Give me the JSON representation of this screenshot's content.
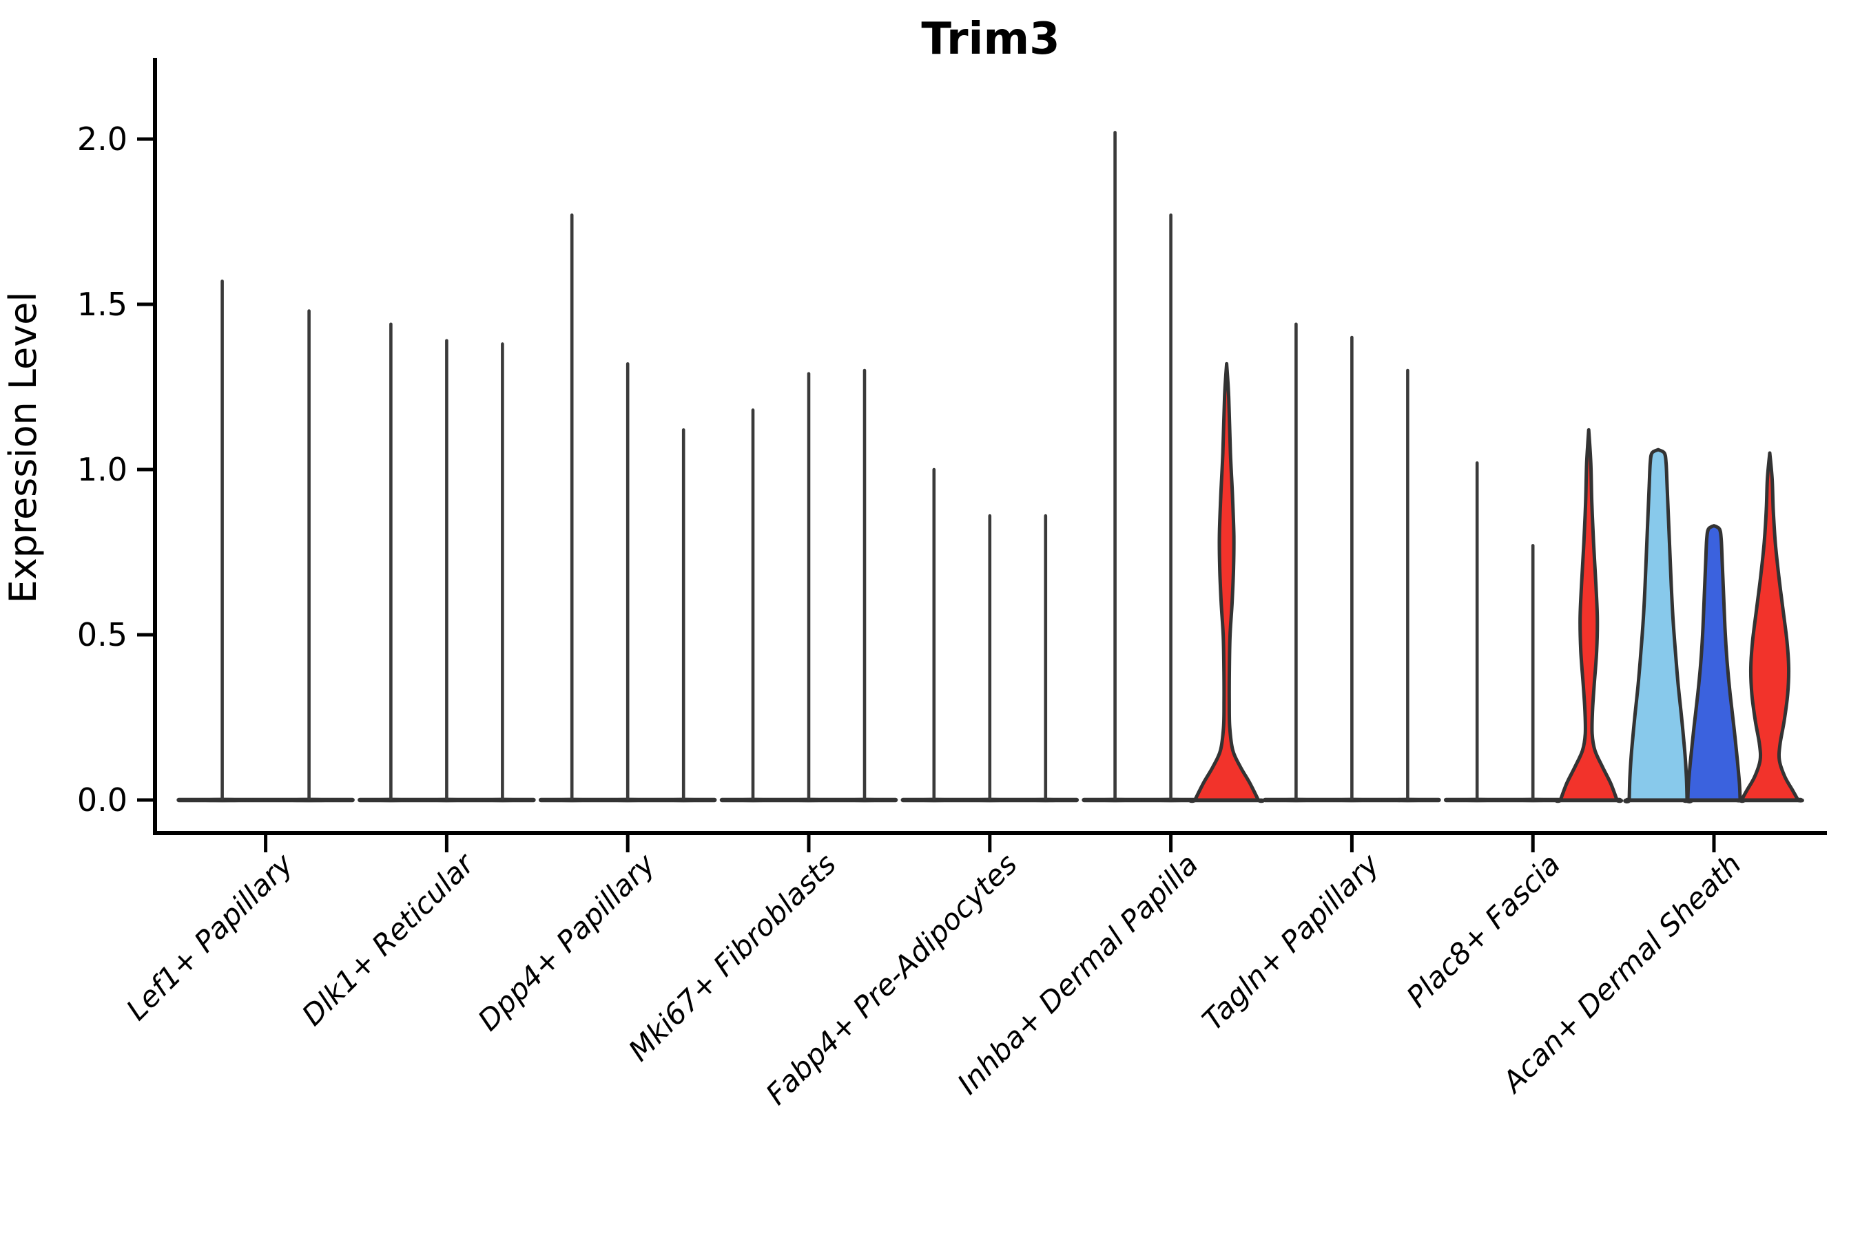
{
  "chart_data": {
    "type": "violin",
    "title": "Trim3",
    "xlabel": "",
    "ylabel": "Expression Level",
    "ytick_labels": [
      "0.0",
      "0.5",
      "1.0",
      "1.5",
      "2.0"
    ],
    "yticks": [
      0.0,
      0.5,
      1.0,
      1.5,
      2.0
    ],
    "ylim": [
      -0.1,
      2.25
    ],
    "grid": false,
    "legend": "none",
    "categories": [
      "Lef1+ Papillary",
      "Dlk1+ Reticular",
      "Dpp4+ Papillary",
      "Mki67+ Fibroblasts",
      "Fabp4+ Pre-Adipocytes",
      "Inhba+ Dermal Papilla",
      "Tagln+ Papillary",
      "Plac8+ Fascia",
      "Acan+ Dermal Sheath"
    ],
    "groups": [
      {
        "category": "Lef1+ Papillary",
        "violins": [
          {
            "style": "spike",
            "max": 1.57
          },
          {
            "style": "spike",
            "max": 1.48
          }
        ]
      },
      {
        "category": "Dlk1+ Reticular",
        "violins": [
          {
            "style": "spike",
            "max": 1.44
          },
          {
            "style": "spike",
            "max": 1.39
          },
          {
            "style": "spike",
            "max": 1.38
          }
        ]
      },
      {
        "category": "Dpp4+ Papillary",
        "violins": [
          {
            "style": "spike",
            "max": 1.77
          },
          {
            "style": "spike",
            "max": 1.32
          },
          {
            "style": "spike",
            "max": 1.12
          }
        ]
      },
      {
        "category": "Mki67+ Fibroblasts",
        "violins": [
          {
            "style": "spike",
            "max": 1.18
          },
          {
            "style": "spike",
            "max": 1.29
          },
          {
            "style": "spike",
            "max": 1.3
          }
        ]
      },
      {
        "category": "Fabp4+ Pre-Adipocytes",
        "violins": [
          {
            "style": "spike",
            "max": 1.0
          },
          {
            "style": "spike",
            "max": 0.86
          },
          {
            "style": "spike",
            "max": 0.86
          }
        ]
      },
      {
        "category": "Inhba+ Dermal Papilla",
        "violins": [
          {
            "style": "spike",
            "max": 2.02
          },
          {
            "style": "spike",
            "max": 1.77
          },
          {
            "style": "shape",
            "max": 1.32,
            "fill": "red",
            "profile": [
              [
                1.32,
                0
              ],
              [
                1.22,
                3
              ],
              [
                1.05,
                5.5
              ],
              [
                0.92,
                8.5
              ],
              [
                0.8,
                10.5
              ],
              [
                0.7,
                10
              ],
              [
                0.6,
                8
              ],
              [
                0.5,
                5
              ],
              [
                0.4,
                4
              ],
              [
                0.3,
                3.8
              ],
              [
                0.22,
                4.5
              ],
              [
                0.15,
                9
              ],
              [
                0.1,
                20
              ],
              [
                0.05,
                34
              ],
              [
                0.0,
                46
              ]
            ]
          }
        ]
      },
      {
        "category": "Tagln+ Papillary",
        "violins": [
          {
            "style": "spike",
            "max": 1.44
          },
          {
            "style": "spike",
            "max": 1.4
          },
          {
            "style": "spike",
            "max": 1.3
          }
        ]
      },
      {
        "category": "Plac8+ Fascia",
        "violins": [
          {
            "style": "spike",
            "max": 1.02
          },
          {
            "style": "spike",
            "max": 0.77
          },
          {
            "style": "shape",
            "max": 1.12,
            "fill": "red",
            "profile": [
              [
                1.12,
                0
              ],
              [
                1.02,
                3
              ],
              [
                0.9,
                4.5
              ],
              [
                0.78,
                7
              ],
              [
                0.65,
                10.5
              ],
              [
                0.55,
                12.5
              ],
              [
                0.45,
                11.5
              ],
              [
                0.35,
                8
              ],
              [
                0.27,
                5.5
              ],
              [
                0.2,
                5
              ],
              [
                0.15,
                9
              ],
              [
                0.1,
                20
              ],
              [
                0.05,
                32
              ],
              [
                0.0,
                41
              ]
            ]
          }
        ]
      },
      {
        "category": "Acan+ Dermal Sheath",
        "violins": [
          {
            "style": "shape",
            "max": 1.05,
            "fill": "light_blue",
            "profile": [
              [
                1.06,
                0
              ],
              [
                1.05,
                9
              ],
              [
                1.02,
                11.5
              ],
              [
                0.95,
                13
              ],
              [
                0.85,
                15
              ],
              [
                0.75,
                17
              ],
              [
                0.65,
                19
              ],
              [
                0.55,
                21.5
              ],
              [
                0.45,
                25
              ],
              [
                0.35,
                29
              ],
              [
                0.25,
                34
              ],
              [
                0.15,
                38.5
              ],
              [
                0.07,
                41
              ],
              [
                0.0,
                42
              ]
            ]
          },
          {
            "style": "shape",
            "max": 0.82,
            "fill": "blue",
            "profile": [
              [
                0.83,
                0
              ],
              [
                0.82,
                8
              ],
              [
                0.79,
                10.5
              ],
              [
                0.72,
                12
              ],
              [
                0.62,
                14
              ],
              [
                0.52,
                16
              ],
              [
                0.42,
                19
              ],
              [
                0.32,
                23.5
              ],
              [
                0.22,
                29
              ],
              [
                0.12,
                34
              ],
              [
                0.05,
                37
              ],
              [
                0.0,
                38
              ]
            ]
          },
          {
            "style": "shape",
            "max": 1.05,
            "fill": "red",
            "profile": [
              [
                1.05,
                0
              ],
              [
                0.97,
                3.5
              ],
              [
                0.88,
                5
              ],
              [
                0.78,
                8
              ],
              [
                0.68,
                13
              ],
              [
                0.58,
                19
              ],
              [
                0.48,
                25
              ],
              [
                0.4,
                27.5
              ],
              [
                0.32,
                26
              ],
              [
                0.24,
                21
              ],
              [
                0.17,
                15
              ],
              [
                0.12,
                14
              ],
              [
                0.07,
                22
              ],
              [
                0.03,
                33
              ],
              [
                0.0,
                41
              ]
            ]
          }
        ]
      }
    ],
    "colors": {
      "red": "#F2332B",
      "light_blue": "#88C9EB",
      "blue": "#3B62DE",
      "outline": "#333333",
      "spike": "#3A3A3A",
      "axis": "#000000"
    }
  }
}
